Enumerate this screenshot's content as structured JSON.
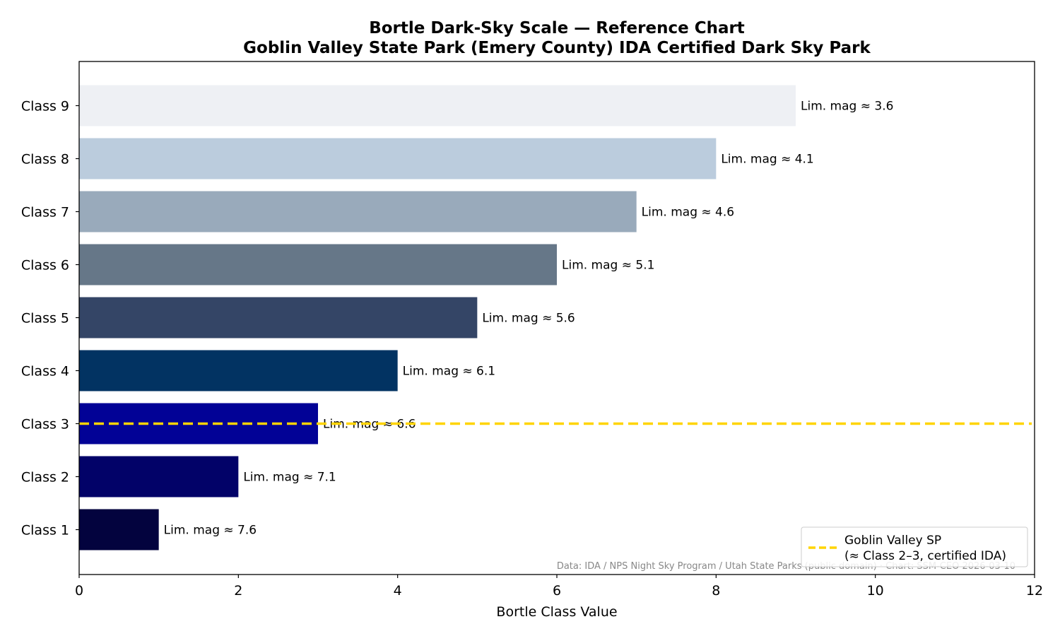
{
  "chart_data": {
    "type": "bar",
    "orientation": "horizontal",
    "title": "Bortle Dark-Sky Scale — Reference Chart",
    "subtitle": "Goblin Valley State Park (Emery County) IDA Certified Dark Sky Park",
    "xlabel": "Bortle Class Value",
    "ylabel": "",
    "xlim": [
      0,
      12
    ],
    "xticks": [
      0,
      2,
      4,
      6,
      8,
      10,
      12
    ],
    "categories": [
      "Class 1",
      "Class 2",
      "Class 3",
      "Class 4",
      "Class 5",
      "Class 6",
      "Class 7",
      "Class 8",
      "Class 9"
    ],
    "values": [
      1,
      2,
      3,
      4,
      5,
      6,
      7,
      8,
      9
    ],
    "bar_labels": [
      "Lim. mag ≈ 7.6",
      "Lim. mag ≈ 7.1",
      "Lim. mag ≈ 6.6",
      "Lim. mag ≈ 6.1",
      "Lim. mag ≈ 5.6",
      "Lim. mag ≈ 5.1",
      "Lim. mag ≈ 4.6",
      "Lim. mag ≈ 4.1",
      "Lim. mag ≈ 3.6"
    ],
    "bar_colors": [
      "#03033e",
      "#020268",
      "#020296",
      "#023362",
      "#344566",
      "#667788",
      "#99aabb",
      "#bbccdd",
      "#eef0f4"
    ],
    "reference_line": {
      "category": "Class 3",
      "color": "#ffd400",
      "style": "dashed",
      "legend_label_line1": "Goblin Valley SP",
      "legend_label_line2": "(≈ Class 2–3, certified IDA)"
    },
    "legend_position": "lower-right",
    "grid": false,
    "footnote": "Data: IDA / NPS Night Sky Program / Utah State Parks (public domain) · Chart: SSM-CEO 2026-03-10"
  }
}
